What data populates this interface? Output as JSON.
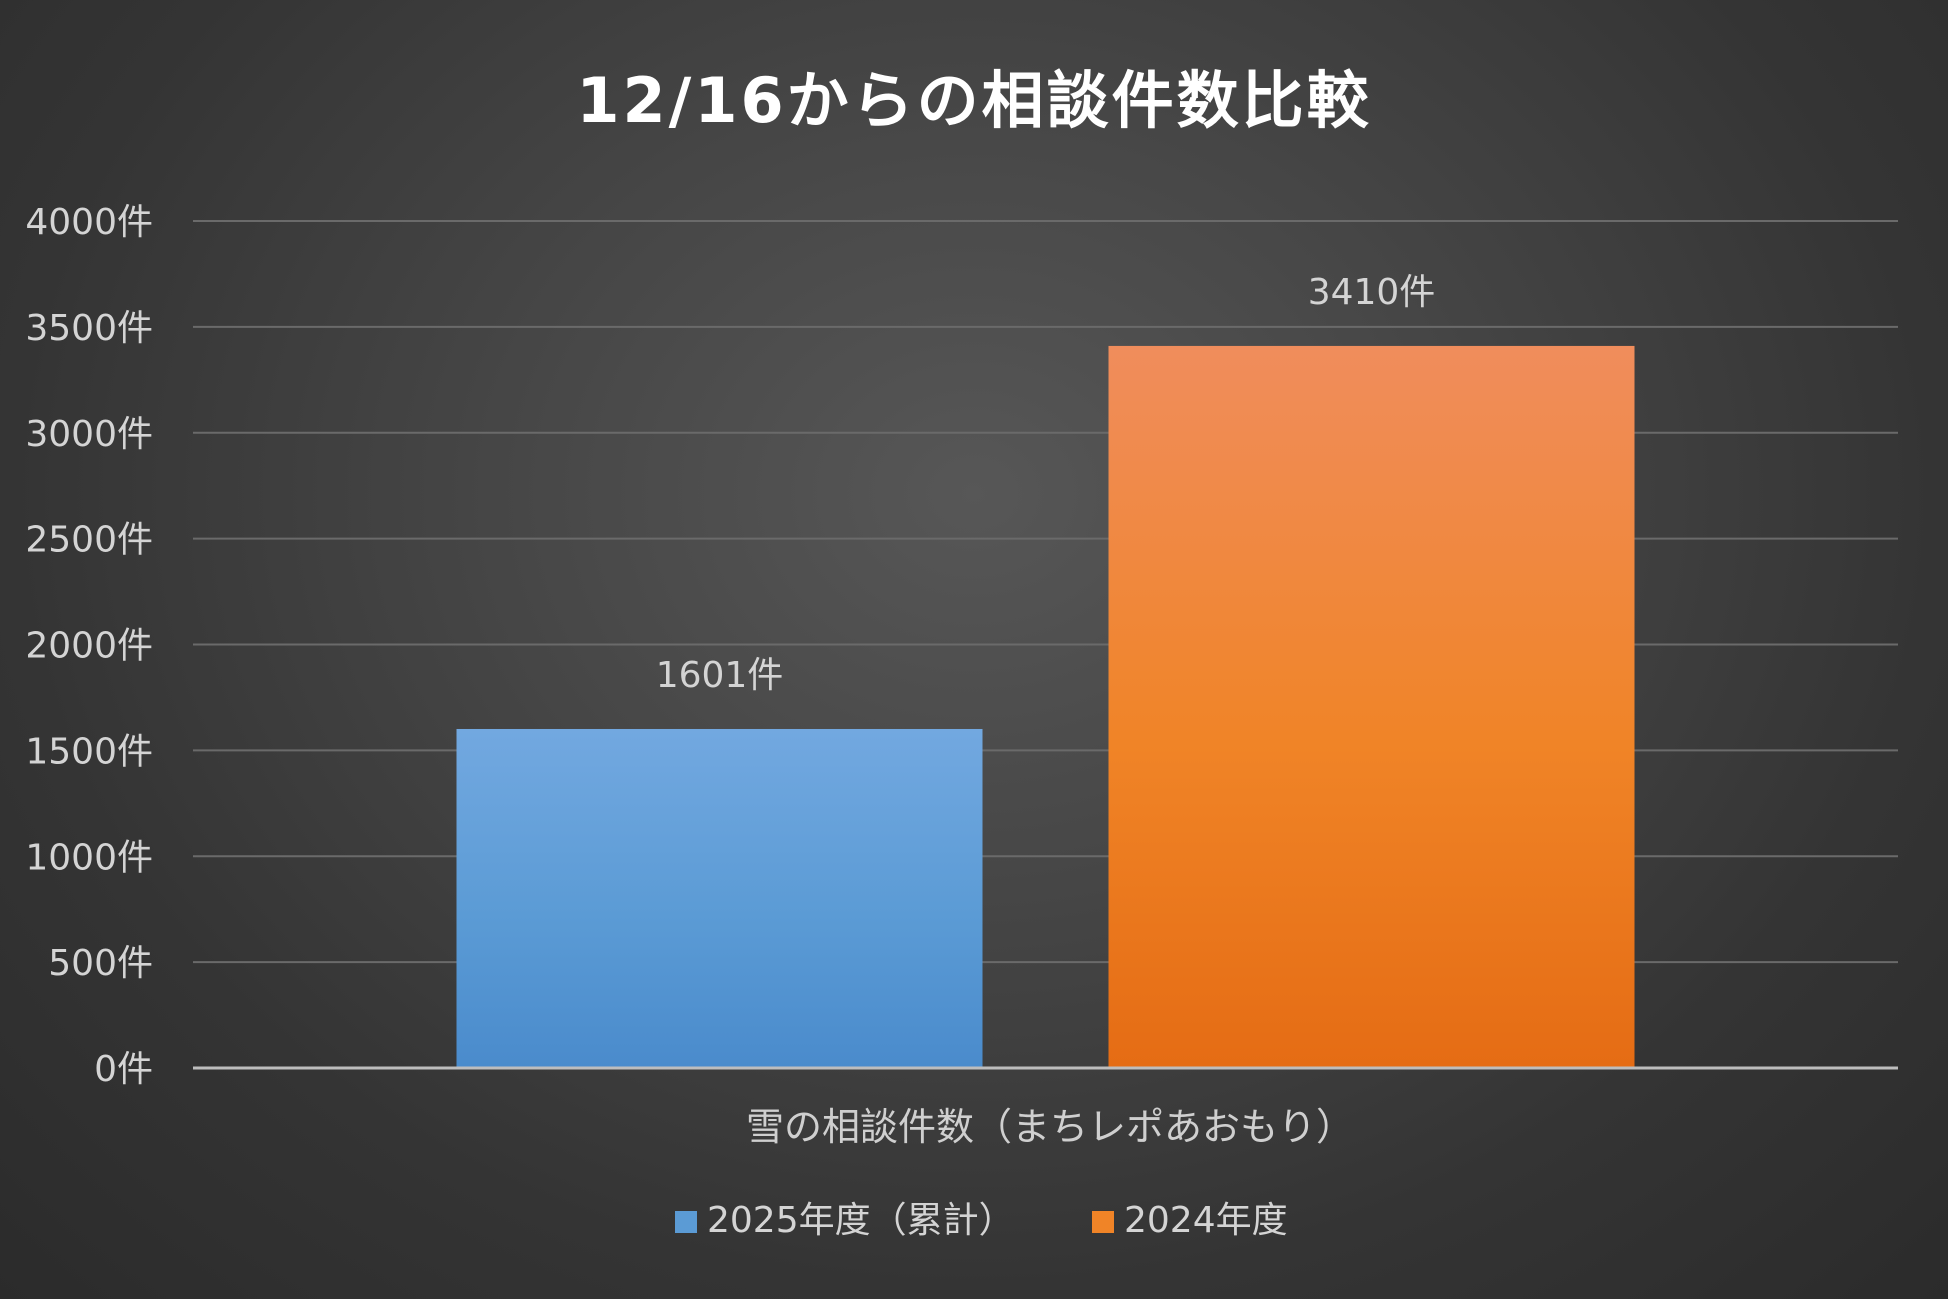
{
  "chart_data": {
    "type": "bar",
    "title": "12/16からの相談件数比較",
    "xlabel": "雪の相談件数（まちレポあおもり）",
    "ylabel": "",
    "ylim": [
      0,
      4000
    ],
    "ytick_step": 500,
    "y_unit_suffix": "件",
    "categories": [
      "雪の相談件数（まちレポあおもり）"
    ],
    "series": [
      {
        "name": "2025年度（累計）",
        "values": [
          1601
        ],
        "data_label": "1601件",
        "color": "#5b9bd5",
        "color_top": "#72a8e0",
        "color_bottom": "#4a8bcc"
      },
      {
        "name": "2024年度",
        "values": [
          3410
        ],
        "data_label": "3410件",
        "color": "#f08427",
        "color_top": "#f08d5c",
        "color_bottom": "#e56c14"
      }
    ],
    "grid": true,
    "legend": "bottom"
  }
}
